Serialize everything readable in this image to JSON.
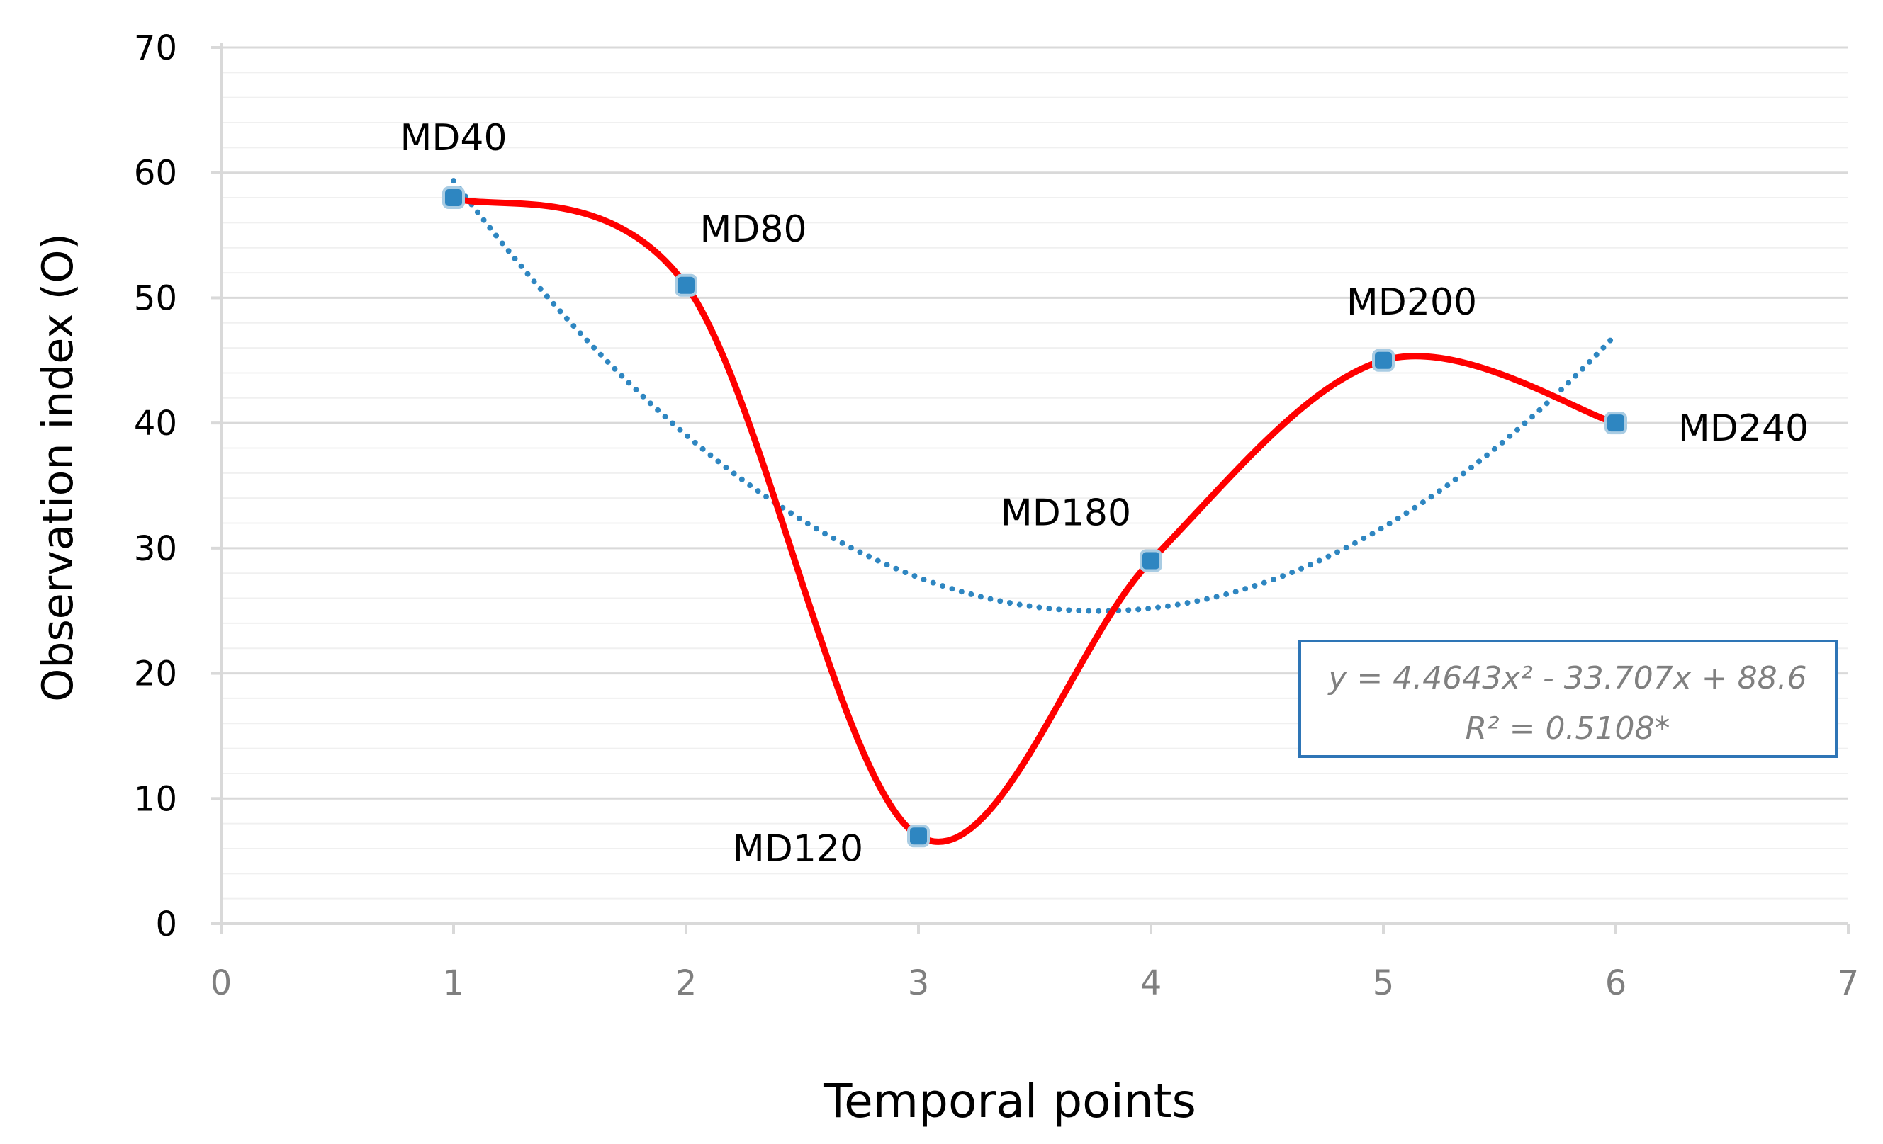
{
  "chart_data": {
    "type": "line",
    "title": "",
    "xlabel": "Temporal points",
    "ylabel": "Observation index (O)",
    "xlim": [
      0,
      7
    ],
    "ylim": [
      0,
      70
    ],
    "x_ticks": [
      "0",
      "1",
      "2",
      "3",
      "4",
      "5",
      "6",
      "7"
    ],
    "y_ticks": [
      "0",
      "10",
      "20",
      "30",
      "40",
      "50",
      "60",
      "70"
    ],
    "grid": "horizontal",
    "series": [
      {
        "name": "Observation index",
        "color": "#ff0000",
        "marker_color": "#2e86c1",
        "smooth": true,
        "x": [
          1,
          2,
          3,
          4,
          5,
          6
        ],
        "values": [
          58,
          51,
          7,
          29,
          45,
          40
        ],
        "labels": [
          "MD40",
          "MD80",
          "MD120",
          "MD180",
          "MD200",
          "MD240"
        ]
      }
    ],
    "trendline": {
      "type": "polynomial",
      "order": 2,
      "color": "#2e86c1",
      "coefficients": {
        "a": 4.4643,
        "b": -33.707,
        "c": 88.6
      },
      "x_range": [
        1,
        6
      ],
      "equation_text": "y = 4.4643x² - 33.707x + 88.6",
      "r2_text": "R² = 0.5108*"
    }
  }
}
